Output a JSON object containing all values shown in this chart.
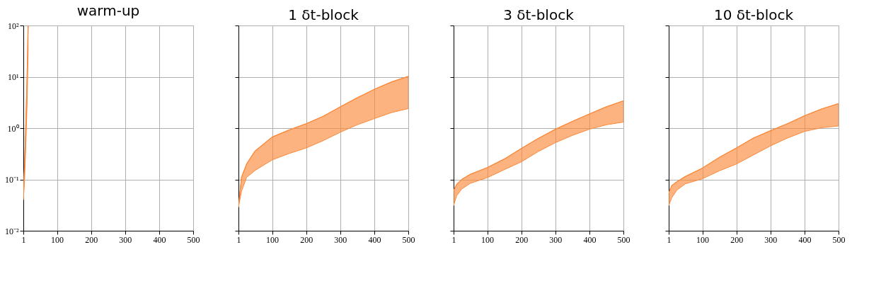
{
  "chart_data": [
    {
      "type": "line",
      "title": "warm-up",
      "log": true,
      "grid": true,
      "xlim": [
        1,
        500
      ],
      "xticks": [
        1,
        100,
        200,
        300,
        400,
        500
      ],
      "ylim": [
        0.01,
        100
      ],
      "yticks": [
        {
          "value": 0.01,
          "label": "10⁻²"
        },
        {
          "value": 0.1,
          "label": "10⁻¹"
        },
        {
          "value": 1,
          "label": "10⁰"
        },
        {
          "value": 10,
          "label": "10¹"
        },
        {
          "value": 100,
          "label": "10²"
        }
      ],
      "series": [
        {
          "color": "#fb8a3c",
          "x": [
            1,
            4,
            8,
            12,
            15
          ],
          "values": [
            0.05,
            0.15,
            1,
            10,
            100
          ],
          "upper": [
            0.05,
            0.15,
            1,
            10,
            100
          ],
          "lower": [
            0.04,
            0.08,
            0.4,
            3,
            30
          ]
        }
      ]
    },
    {
      "type": "line",
      "title": "1 δt-block",
      "log": true,
      "grid": true,
      "tick_labels": "x",
      "xlim": [
        1,
        500
      ],
      "xticks": [
        1,
        100,
        200,
        300,
        400,
        500
      ],
      "ylim": [
        0.01,
        100
      ],
      "yticks": [
        0.01,
        0.1,
        1,
        10,
        100
      ],
      "series": [
        {
          "color": "#fb8a3c",
          "x": [
            1,
            10,
            25,
            50,
            100,
            150,
            200,
            250,
            300,
            350,
            400,
            450,
            500
          ],
          "values": [
            0.029,
            0.11,
            0.2,
            0.36,
            0.67,
            0.92,
            1.22,
            1.7,
            2.6,
            3.9,
            5.7,
            7.9,
            10.2
          ],
          "upper": [
            0.029,
            0.11,
            0.2,
            0.36,
            0.67,
            0.92,
            1.22,
            1.7,
            2.6,
            3.9,
            5.7,
            7.9,
            10.2
          ],
          "lower": [
            0.029,
            0.059,
            0.11,
            0.15,
            0.24,
            0.32,
            0.41,
            0.57,
            0.83,
            1.16,
            1.53,
            2.0,
            2.4
          ]
        }
      ]
    },
    {
      "type": "line",
      "title": "3 δt-block",
      "log": true,
      "grid": true,
      "tick_labels": "x",
      "xlim": [
        1,
        500
      ],
      "xticks": [
        1,
        100,
        200,
        300,
        400,
        500
      ],
      "ylim": [
        0.01,
        100
      ],
      "yticks": [
        0.01,
        0.1,
        1,
        10,
        100
      ],
      "series": [
        {
          "color": "#fb8a3c",
          "x": [
            1,
            10,
            25,
            50,
            100,
            150,
            200,
            250,
            300,
            350,
            400,
            450,
            500
          ],
          "values": [
            0.06,
            0.08,
            0.1,
            0.126,
            0.17,
            0.25,
            0.4,
            0.63,
            0.95,
            1.35,
            1.89,
            2.6,
            3.4
          ],
          "upper": [
            0.06,
            0.08,
            0.1,
            0.126,
            0.17,
            0.25,
            0.4,
            0.63,
            0.95,
            1.35,
            1.89,
            2.6,
            3.4
          ],
          "lower": [
            0.031,
            0.048,
            0.065,
            0.084,
            0.108,
            0.155,
            0.22,
            0.35,
            0.52,
            0.72,
            0.95,
            1.16,
            1.31
          ]
        }
      ]
    },
    {
      "type": "line",
      "title": "10 δt-block",
      "log": true,
      "grid": true,
      "tick_labels": "x",
      "xlim": [
        1,
        500
      ],
      "xticks": [
        1,
        100,
        200,
        300,
        400,
        500
      ],
      "ylim": [
        0.01,
        100
      ],
      "yticks": [
        0.01,
        0.1,
        1,
        10,
        100
      ],
      "series": [
        {
          "color": "#fb8a3c",
          "x": [
            1,
            10,
            25,
            50,
            100,
            150,
            200,
            250,
            300,
            350,
            400,
            450,
            500
          ],
          "values": [
            0.054,
            0.076,
            0.09,
            0.114,
            0.166,
            0.27,
            0.41,
            0.64,
            0.89,
            1.22,
            1.74,
            2.36,
            3.0
          ],
          "upper": [
            0.054,
            0.076,
            0.09,
            0.114,
            0.166,
            0.27,
            0.41,
            0.64,
            0.89,
            1.22,
            1.74,
            2.36,
            3.0
          ],
          "lower": [
            0.031,
            0.044,
            0.062,
            0.082,
            0.103,
            0.147,
            0.2,
            0.3,
            0.45,
            0.64,
            0.86,
            1.02,
            1.1
          ]
        }
      ]
    }
  ]
}
